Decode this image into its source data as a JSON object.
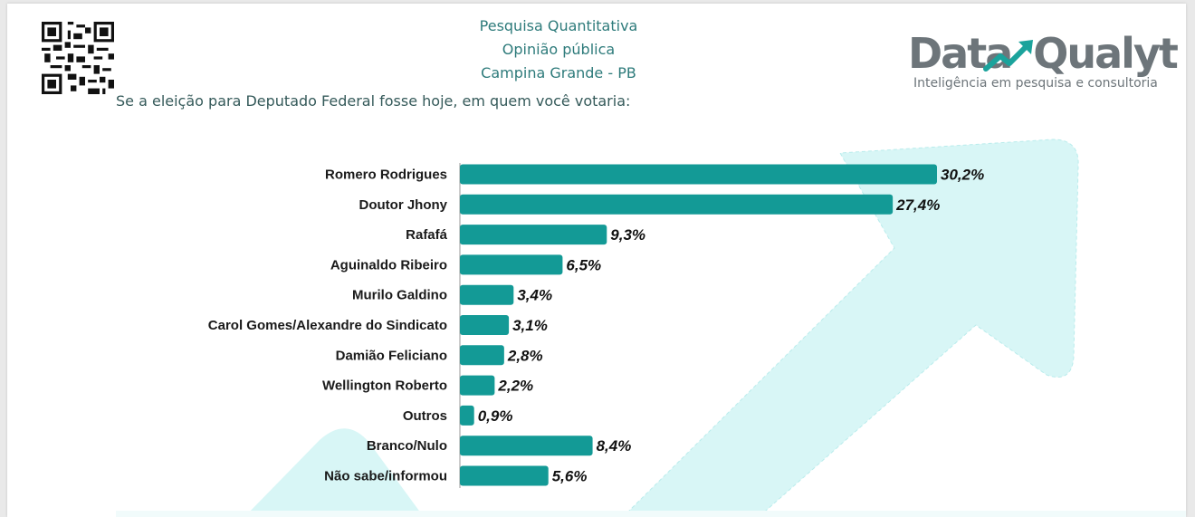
{
  "header": {
    "line1": "Pesquisa Quantitativa",
    "line2": "Opinião pública",
    "line3": "Campina Grande - PB"
  },
  "question": "Se a eleição para Deputado Federal fosse hoje, em quem você votaria:",
  "logo": {
    "word_left": "Data",
    "word_right": "Qualyt",
    "tagline": "Inteligência em pesquisa e consultoria"
  },
  "colors": {
    "bar": "#139a96",
    "header_text": "#2e7b7b",
    "logo_gray": "#6d757a",
    "logo_accent": "#1ba39c",
    "arrow_bg": "#d8f6f6"
  },
  "chart_data": {
    "type": "bar",
    "orientation": "horizontal",
    "categories": [
      "Romero Rodrigues",
      "Doutor Jhony",
      "Rafafá",
      "Aguinaldo Ribeiro",
      "Murilo Galdino",
      "Carol Gomes/Alexandre do Sindicato",
      "Damião Feliciano",
      "Wellington Roberto",
      "Outros",
      "Branco/Nulo",
      "Não sabe/informou"
    ],
    "values": [
      30.2,
      27.4,
      9.3,
      6.5,
      3.4,
      3.1,
      2.8,
      2.2,
      0.9,
      8.4,
      5.6
    ],
    "labels": [
      "30,2%",
      "27,4%",
      "9,3%",
      "6,5%",
      "3,4%",
      "3,1%",
      "2,8%",
      "2,2%",
      "0,9%",
      "8,4%",
      "5,6%"
    ],
    "xlim": [
      0,
      30.2
    ],
    "grid": false
  }
}
